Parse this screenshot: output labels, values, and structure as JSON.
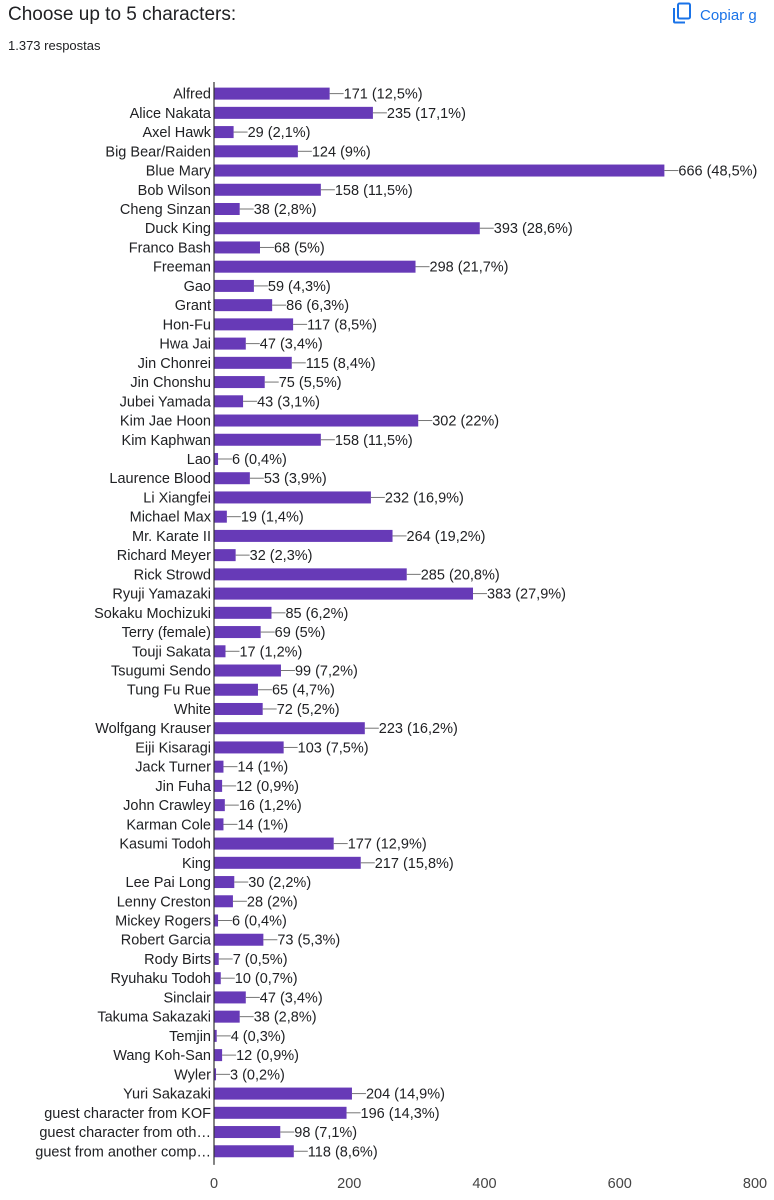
{
  "header": {
    "title": "Choose up to 5 characters:",
    "responses": "1.373 respostas",
    "copy_label": "Copiar g"
  },
  "colors": {
    "bar": "#673ab7",
    "accent": "#1a73e8",
    "axis": "#333333",
    "grid": "#cccccc"
  },
  "icons": {
    "copy": "copy-icon"
  },
  "chart_data": {
    "type": "bar",
    "orientation": "horizontal",
    "title": "Choose up to 5 characters:",
    "xlim": [
      0,
      800
    ],
    "xticks": [
      0,
      200,
      400,
      600,
      800
    ],
    "grid": false,
    "legend": "none",
    "categories": [
      "Alfred",
      "Alice Nakata",
      "Axel Hawk",
      "Big Bear/Raiden",
      "Blue Mary",
      "Bob Wilson",
      "Cheng Sinzan",
      "Duck King",
      "Franco Bash",
      "Freeman",
      "Gao",
      "Grant",
      "Hon-Fu",
      "Hwa Jai",
      "Jin Chonrei",
      "Jin Chonshu",
      "Jubei Yamada",
      "Kim Jae Hoon",
      "Kim Kaphwan",
      "Lao",
      "Laurence Blood",
      "Li Xiangfei",
      "Michael Max",
      "Mr. Karate II",
      "Richard Meyer",
      "Rick Strowd",
      "Ryuji Yamazaki",
      "Sokaku Mochizuki",
      "Terry (female)",
      "Touji Sakata",
      "Tsugumi Sendo",
      "Tung Fu Rue",
      "White",
      "Wolfgang Krauser",
      "Eiji Kisaragi",
      "Jack Turner",
      "Jin Fuha",
      "John Crawley",
      "Karman Cole",
      "Kasumi Todoh",
      "King",
      "Lee Pai Long",
      "Lenny Creston",
      "Mickey Rogers",
      "Robert Garcia",
      "Rody Birts",
      "Ryuhaku Todoh",
      "Sinclair",
      "Takuma Sakazaki",
      "Temjin",
      "Wang Koh-San",
      "Wyler",
      "Yuri Sakazaki",
      "guest character from KOF",
      "guest character from oth…",
      "guest from another comp…"
    ],
    "values": [
      171,
      235,
      29,
      124,
      666,
      158,
      38,
      393,
      68,
      298,
      59,
      86,
      117,
      47,
      115,
      75,
      43,
      302,
      158,
      6,
      53,
      232,
      19,
      264,
      32,
      285,
      383,
      85,
      69,
      17,
      99,
      65,
      72,
      223,
      103,
      14,
      12,
      16,
      14,
      177,
      217,
      30,
      28,
      6,
      73,
      7,
      10,
      47,
      38,
      4,
      12,
      3,
      204,
      196,
      98,
      118
    ],
    "data_labels": [
      "171 (12,5%)",
      "235 (17,1%)",
      "29 (2,1%)",
      "124 (9%)",
      "666 (48,5%)",
      "158 (11,5%)",
      "38 (2,8%)",
      "393 (28,6%)",
      "68 (5%)",
      "298 (21,7%)",
      "59 (4,3%)",
      "86 (6,3%)",
      "117 (8,5%)",
      "47 (3,4%)",
      "115 (8,4%)",
      "75 (5,5%)",
      "43 (3,1%)",
      "302 (22%)",
      "158 (11,5%)",
      "6 (0,4%)",
      "53 (3,9%)",
      "232 (16,9%)",
      "19 (1,4%)",
      "264 (19,2%)",
      "32 (2,3%)",
      "285 (20,8%)",
      "383 (27,9%)",
      "85 (6,2%)",
      "69 (5%)",
      "17 (1,2%)",
      "99 (7,2%)",
      "65 (4,7%)",
      "72 (5,2%)",
      "223 (16,2%)",
      "103 (7,5%)",
      "14 (1%)",
      "12 (0,9%)",
      "16 (1,2%)",
      "14 (1%)",
      "177 (12,9%)",
      "217 (15,8%)",
      "30 (2,2%)",
      "28 (2%)",
      "6 (0,4%)",
      "73 (5,3%)",
      "7 (0,5%)",
      "10 (0,7%)",
      "47 (3,4%)",
      "38 (2,8%)",
      "4 (0,3%)",
      "12 (0,9%)",
      "3 (0,2%)",
      "204 (14,9%)",
      "196 (14,3%)",
      "98 (7,1%)",
      "118 (8,6%)"
    ]
  }
}
